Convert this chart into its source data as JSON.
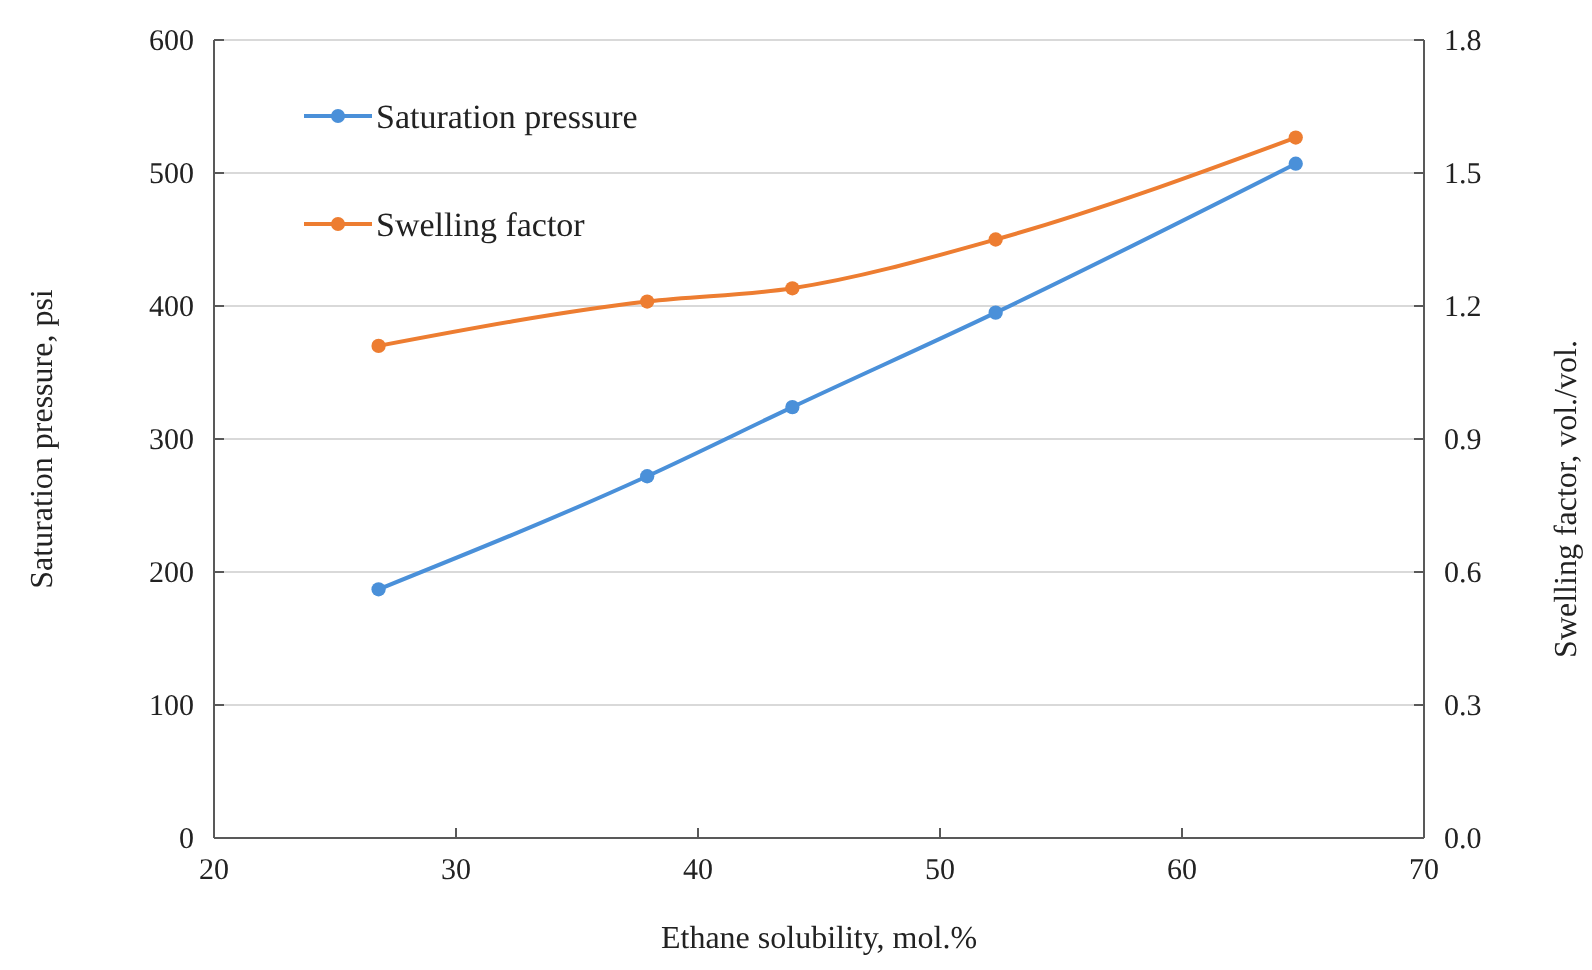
{
  "chart_data": {
    "type": "line",
    "xlabel": "Ethane solubility, mol.%",
    "ylabel": "Saturation pressure, psi",
    "y2label": "Swelling factor, vol./vol.",
    "x": [
      26.8,
      37.9,
      43.9,
      52.3,
      64.7
    ],
    "series": [
      {
        "name": "Saturation pressure",
        "color": "#4a90d9",
        "values": [
          187,
          272,
          324,
          395,
          507
        ]
      },
      {
        "name": "Swelling factor",
        "color": "#ed7d31",
        "values": [
          1.11,
          1.21,
          1.24,
          1.35,
          1.58
        ],
        "axis": "y2"
      }
    ],
    "xlim": [
      20,
      70
    ],
    "xticks": [
      20,
      30,
      40,
      50,
      60,
      70
    ],
    "ylim": [
      0,
      600
    ],
    "yticks": [
      0,
      100,
      200,
      300,
      400,
      500,
      600
    ],
    "y2lim": [
      0,
      1.8
    ],
    "y2ticks": [
      {
        "value": 0,
        "label": "0.0"
      },
      {
        "value": 0.3,
        "label": "0.3"
      },
      {
        "value": 0.6,
        "label": "0.6"
      },
      {
        "value": 0.9,
        "label": "0.9"
      },
      {
        "value": 1.2,
        "label": "1.2"
      },
      {
        "value": 1.5,
        "label": "1.5"
      },
      {
        "value": 1.8,
        "label": "1.8"
      }
    ],
    "grid": "y",
    "legend": "top left",
    "marker": "circle",
    "line_style": "solid"
  }
}
